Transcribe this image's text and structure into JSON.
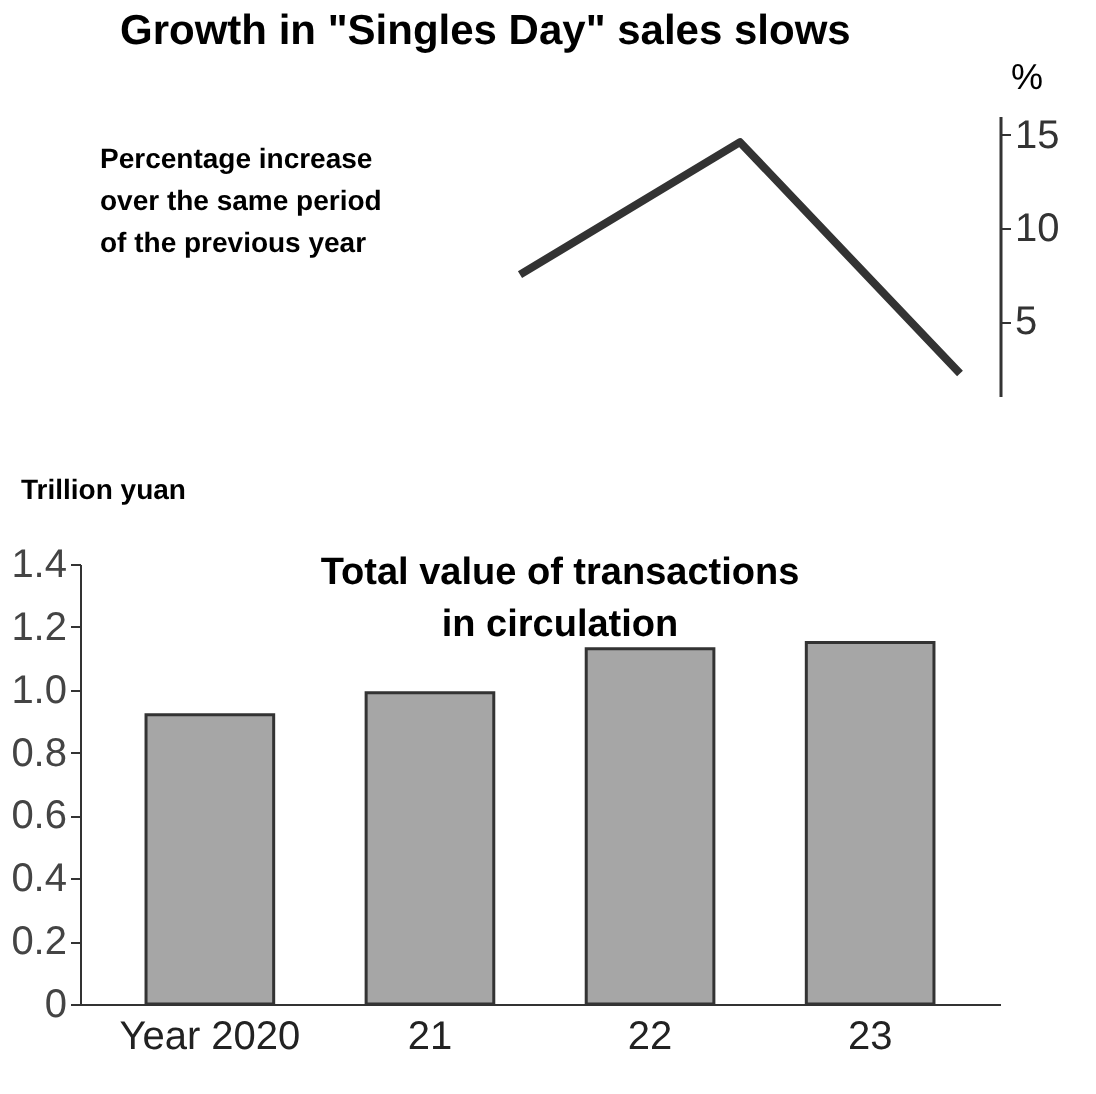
{
  "chart_data": [
    {
      "type": "line",
      "title": "Growth in \"Singles Day\" sales slows",
      "ylabel": "%",
      "annotations": [
        "Percentage increase over the same period of the previous year"
      ],
      "categories": [
        null,
        null,
        null
      ],
      "series": [
        {
          "color": "#333333",
          "values": [
            7.5,
            14.6,
            2.2
          ]
        }
      ],
      "line_style": "solid",
      "ylim": [
        1,
        16
      ],
      "yticks": [
        5,
        10,
        15
      ],
      "tick_labels": "y",
      "grid": false
    },
    {
      "type": "bar",
      "title": "Total value of transactions in circulation",
      "ylabel": "Trillion yuan",
      "categories": [
        "Year 2020",
        "21",
        "22",
        "23"
      ],
      "series": [
        {
          "color": "#a6a6a6",
          "values": [
            0.92,
            0.99,
            1.13,
            1.15
          ]
        }
      ],
      "ylim": [
        0,
        1.4
      ],
      "yticks": [
        0,
        0.2,
        0.4,
        0.6,
        0.8,
        {
          "value": 1,
          "label": "1.0"
        },
        1.2,
        1.4
      ],
      "grid": false
    }
  ]
}
